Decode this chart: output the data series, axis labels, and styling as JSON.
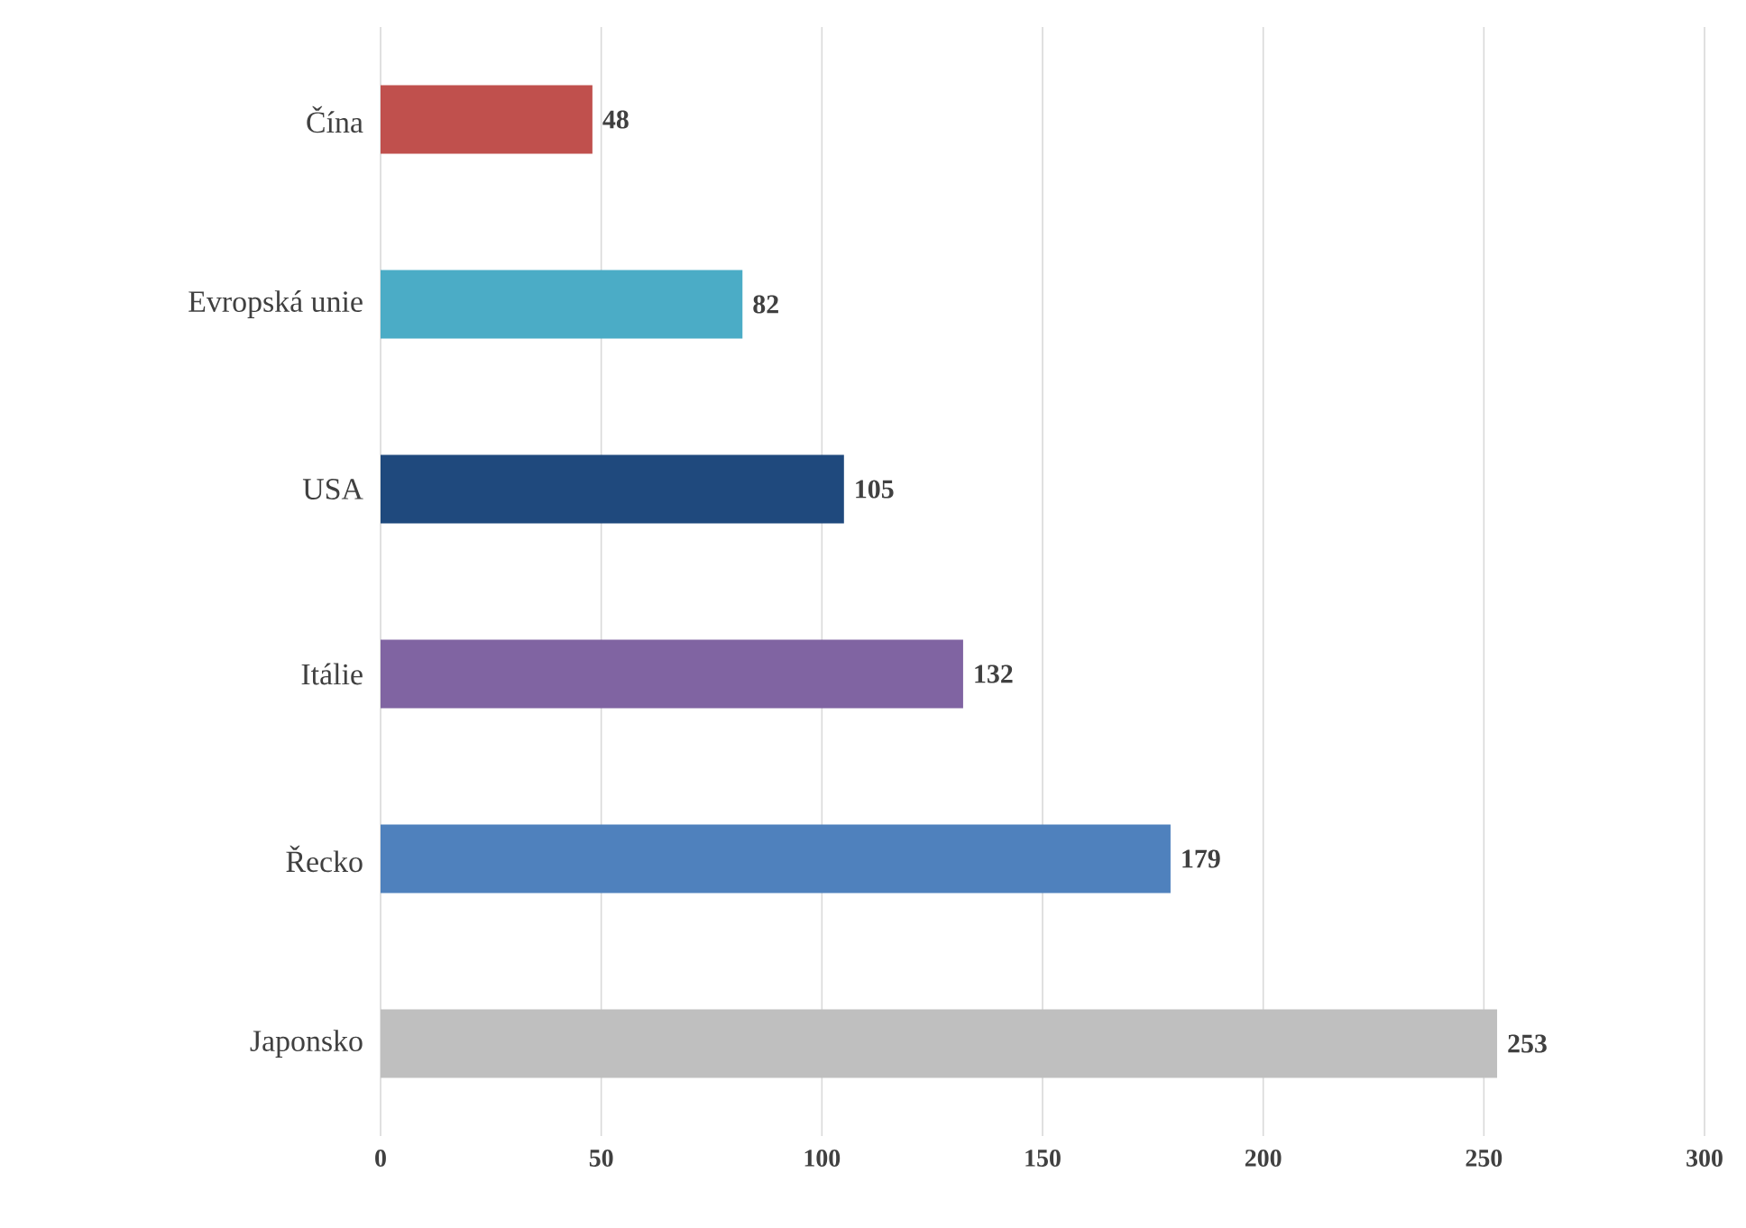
{
  "chart_data": {
    "type": "bar",
    "orientation": "horizontal",
    "categories": [
      "Čína",
      "Evropská unie",
      "USA",
      "Itálie",
      "Řecko",
      "Japonsko"
    ],
    "values": [
      48,
      82,
      105,
      132,
      179,
      253
    ],
    "colors": [
      "#c0504d",
      "#4bacc6",
      "#1f497d",
      "#8064a2",
      "#4f81bd",
      "#bfbfbf"
    ],
    "xlim": [
      0,
      300
    ],
    "xticks": [
      0,
      50,
      100,
      150,
      200,
      250,
      300
    ],
    "grid": "x",
    "data_labels": true
  }
}
